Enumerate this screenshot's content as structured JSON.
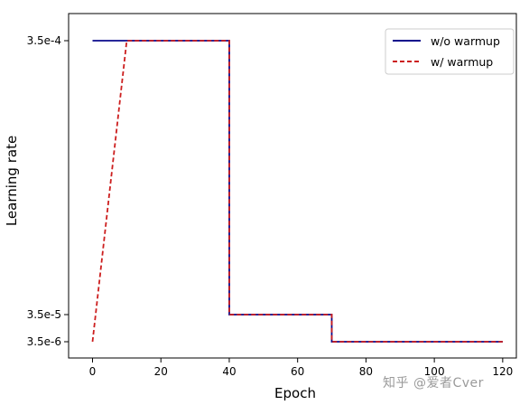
{
  "chart_data": {
    "type": "line",
    "xlabel": "Epoch",
    "ylabel": "Learning rate",
    "xlim": [
      -7,
      124
    ],
    "x_ticks": [
      0,
      20,
      40,
      60,
      80,
      100,
      120
    ],
    "y_ticks": [
      {
        "label": "3.5e-4"
      },
      {
        "label": "3.5e-5"
      },
      {
        "label": "3.5e-6"
      }
    ],
    "legend_position": "top-right",
    "series": [
      {
        "name": "w/o warmup",
        "color": "#0a0a8c",
        "style": "solid",
        "x": [
          0,
          40,
          40,
          70,
          70,
          120
        ],
        "y": [
          "3.5e-4",
          "3.5e-4",
          "3.5e-5",
          "3.5e-5",
          "3.5e-6",
          "3.5e-6"
        ]
      },
      {
        "name": "w/ warmup",
        "color": "#cc1e1e",
        "style": "dashed",
        "x": [
          0,
          10,
          40,
          40,
          70,
          70,
          120
        ],
        "y": [
          "3.5e-6",
          "3.5e-4",
          "3.5e-4",
          "3.5e-5",
          "3.5e-5",
          "3.5e-6",
          "3.5e-6"
        ]
      }
    ]
  },
  "watermark_text": "知乎 @爱者Cver"
}
